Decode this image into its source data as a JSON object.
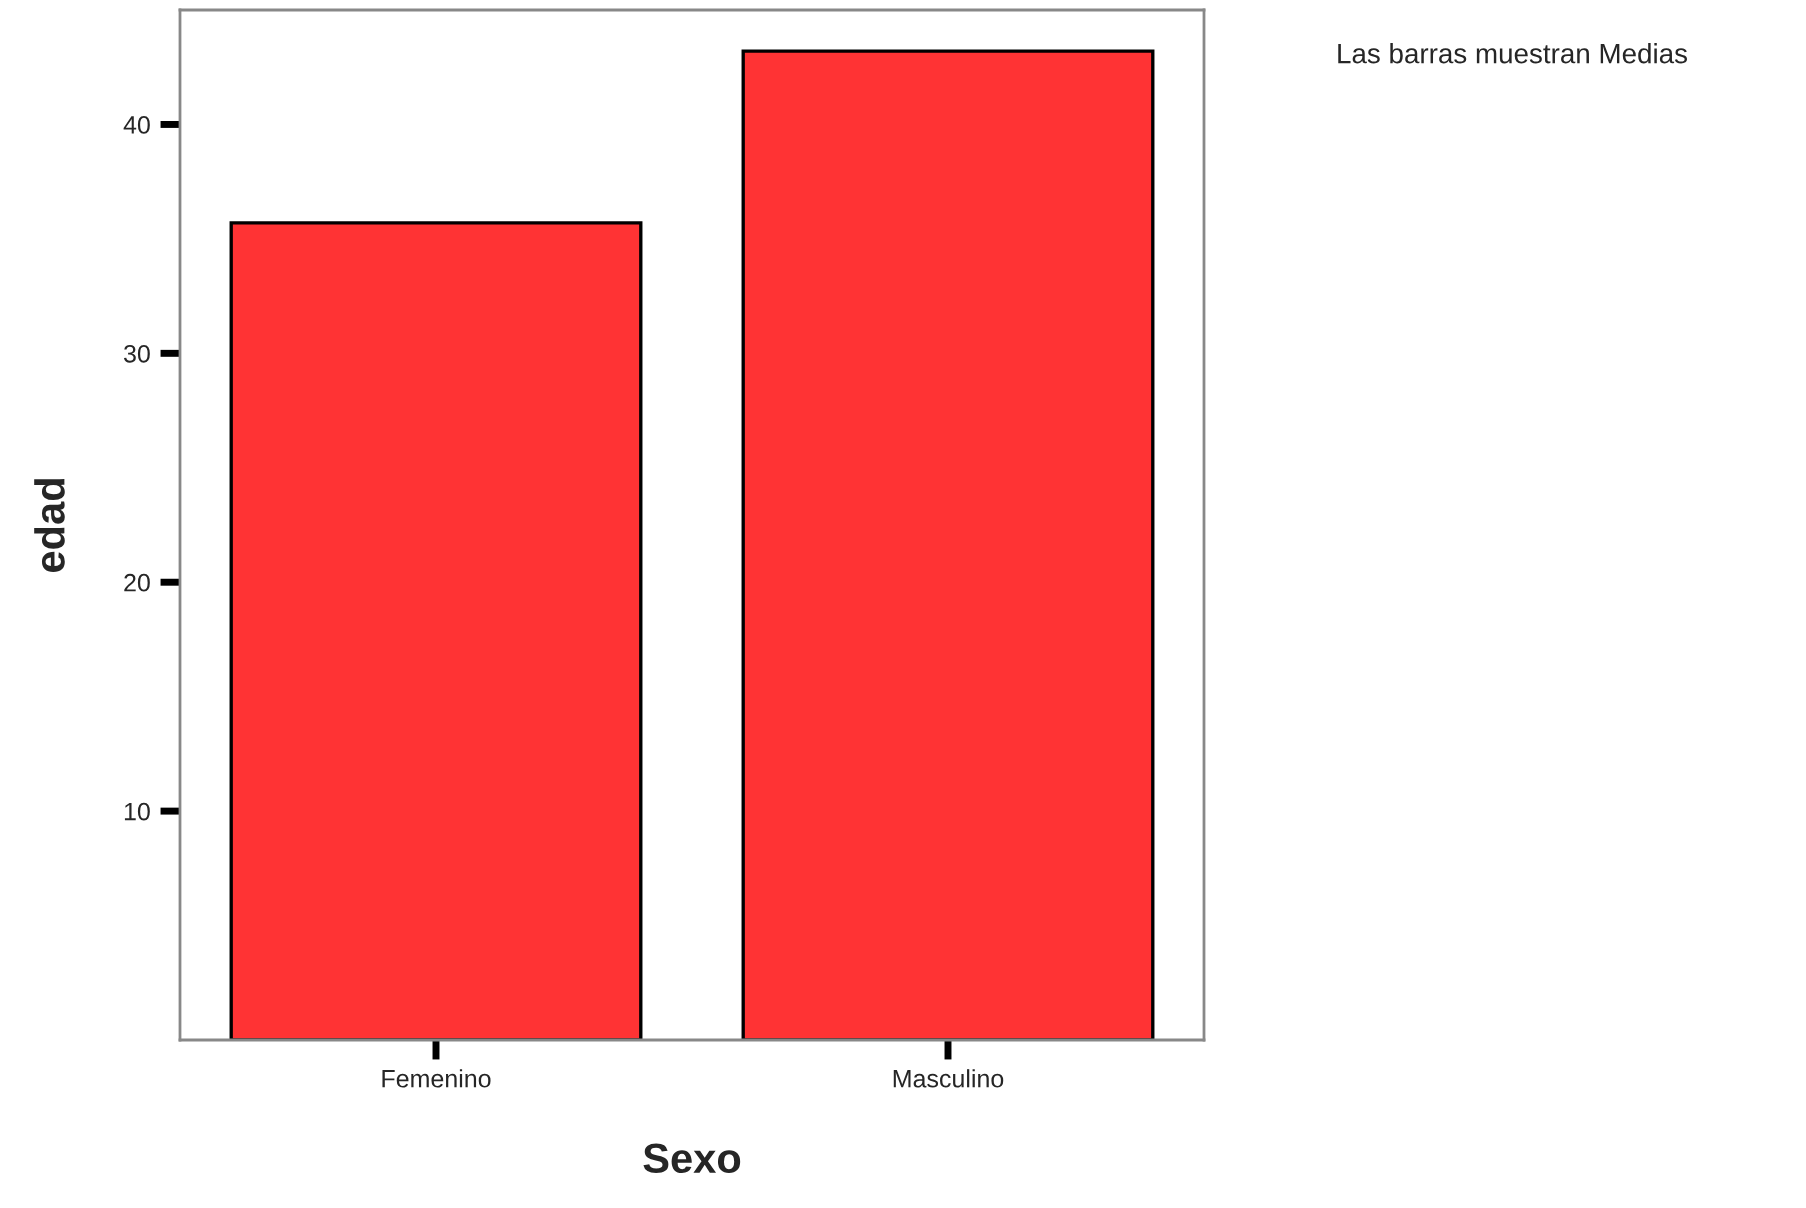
{
  "chart_data": {
    "type": "bar",
    "xlabel": "Sexo",
    "ylabel": "edad",
    "categories": [
      "Femenino",
      "Masculino"
    ],
    "values": [
      35.7,
      43.2
    ],
    "color": "#ff3334",
    "ylim": [
      0,
      45
    ],
    "yticks": [
      10,
      20,
      30,
      40
    ],
    "grid": false,
    "annotations": [
      "Las barras muestran Medias"
    ]
  }
}
